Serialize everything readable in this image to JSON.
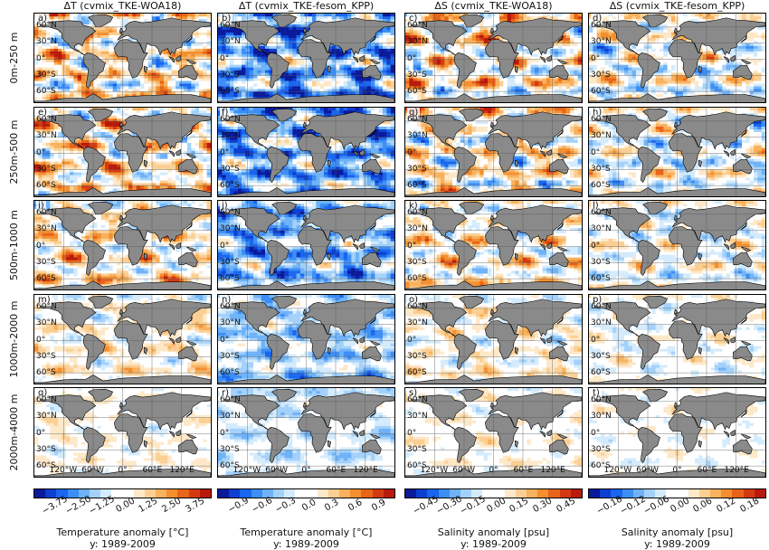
{
  "columns": [
    {
      "title": "ΔT (cvmix_TKE-WOA18)",
      "kind": "T1"
    },
    {
      "title": "ΔT (cvmix_TKE-fesom_KPP)",
      "kind": "T2"
    },
    {
      "title": "ΔS (cvmix_TKE-WOA18)",
      "kind": "S1"
    },
    {
      "title": "ΔS (cvmix_TKE-fesom_KPP)",
      "kind": "S2"
    }
  ],
  "rows": [
    "0m-250 m",
    "250m-500 m",
    "500m-1000 m",
    "1000m-2000 m",
    "2000m-4000 m"
  ],
  "panel_letters": [
    "a)",
    "b)",
    "c)",
    "d)",
    "e)",
    "f)",
    "g)",
    "h)",
    "i)",
    "j)",
    "k)",
    "l)",
    "m)",
    "n)",
    "o)",
    "p)",
    "q)",
    "r)",
    "s)",
    "t)"
  ],
  "lat_ticks": [
    "60°N",
    "30°N",
    "0°",
    "30°S",
    "60°S"
  ],
  "lon_ticks": [
    "120°W",
    "60°W",
    "0°",
    "60°E",
    "120°E"
  ],
  "colorbars": [
    {
      "ticks": [
        "−3.75",
        "−2.50",
        "−1.25",
        "0.00",
        "1.25",
        "2.50",
        "3.75"
      ],
      "label": "Temperature anomaly [°C]",
      "sublabel": "y: 1989-2009"
    },
    {
      "ticks": [
        "−0.9",
        "−0.6",
        "−0.3",
        "0.0",
        "0.3",
        "0.6",
        "0.9"
      ],
      "label": "Temperature anomaly [°C]",
      "sublabel": "y: 1989-2009"
    },
    {
      "ticks": [
        "−0.45",
        "−0.30",
        "−0.15",
        "0.00",
        "0.15",
        "0.30",
        "0.45"
      ],
      "label": "Salinity anomaly [psu]",
      "sublabel": "y: 1989-2009"
    },
    {
      "ticks": [
        "−0.18",
        "−0.12",
        "−0.06",
        "0.00",
        "0.06",
        "0.12",
        "0.18"
      ],
      "label": "Salinity anomaly [psu]",
      "sublabel": "y: 1989-2009"
    }
  ],
  "colormap": [
    "#0a1a9a",
    "#0d3fd0",
    "#1a66ee",
    "#3d8ef5",
    "#6fb2f7",
    "#a3d1fa",
    "#d4ebfc",
    "#ffffff",
    "#ffffff",
    "#fde8c8",
    "#fbcf93",
    "#f8b15e",
    "#f38f2f",
    "#e8641a",
    "#d43a12",
    "#b81a0c"
  ],
  "land_color": "#8a8a8a"
}
